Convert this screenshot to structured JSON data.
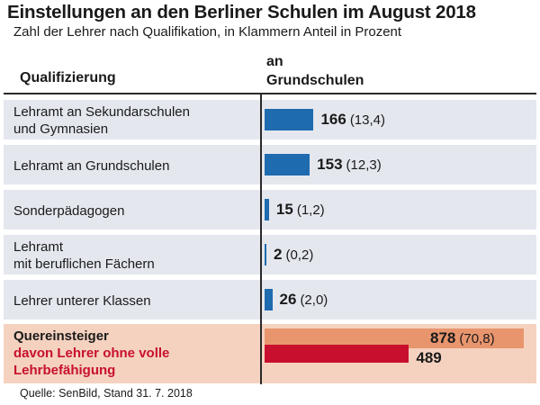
{
  "title": "Einstellungen an den Berliner Schulen im August 2018",
  "subtitle": "Zahl der Lehrer nach Qualifikation, in Klammern Anteil in Prozent",
  "source": "Quelle: SenBild, Stand 31. 7. 2018",
  "colors": {
    "bar": "#1f6bb0",
    "row_background": "#e4e7ee",
    "highlight_background": "#f5d2bf",
    "bar_total_highlight": "#e8956e",
    "bar_sub_highlight": "#c8102e",
    "sub_label": "#c8102e"
  },
  "chart_data": {
    "type": "bar",
    "orientation": "horizontal",
    "category_header": "Qualifizierung",
    "value_header": [
      "an",
      "Grundschulen"
    ],
    "xlim": [
      0,
      878
    ],
    "grid": false,
    "rows": [
      {
        "label_lines": [
          "Lehramt an Sekundarschulen",
          "und Gymnasien"
        ],
        "value": 166,
        "value_text": "166",
        "share_text": "(13,4)"
      },
      {
        "label_lines": [
          "Lehramt an Grundschulen"
        ],
        "value": 153,
        "value_text": "153",
        "share_text": "(12,3)"
      },
      {
        "label_lines": [
          "Sonderpädagogen"
        ],
        "value": 15,
        "value_text": "15",
        "share_text": "(1,2)"
      },
      {
        "label_lines": [
          "Lehramt",
          "mit beruflichen Fächern"
        ],
        "value": 2,
        "value_text": "2",
        "share_text": "(0,2)"
      },
      {
        "label_lines": [
          "Lehrer unterer Klassen"
        ],
        "value": 26,
        "value_text": "26",
        "share_text": "(2,0)"
      }
    ],
    "highlight": {
      "label": "Quereinsteiger",
      "value": 878,
      "value_text": "878",
      "share_text": "(70,8)",
      "sub_label_lines": [
        "davon Lehrer ohne volle",
        "Lehrbefähigung"
      ],
      "sub_value": 489,
      "sub_value_text": "489"
    }
  }
}
